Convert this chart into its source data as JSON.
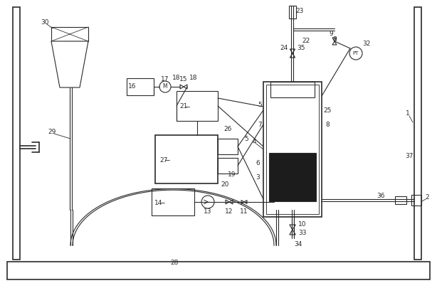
{
  "bg_color": "#ffffff",
  "line_color": "#2a2a2a",
  "lw": 0.8,
  "lw2": 1.2,
  "lw3": 1.5
}
